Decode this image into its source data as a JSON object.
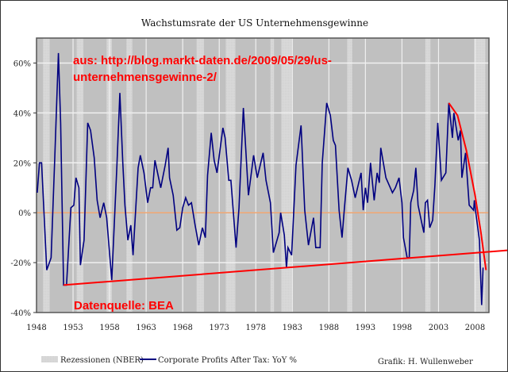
{
  "chart_data": {
    "type": "line",
    "title": "Wachstumsrate der US Unternehmensgewinne",
    "xlabel": "",
    "ylabel": "",
    "xlim": [
      1948,
      2009.9
    ],
    "ylim": [
      -40,
      70
    ],
    "x_ticks": [
      1948,
      1953,
      1958,
      1963,
      1968,
      1973,
      1978,
      1983,
      1988,
      1993,
      1998,
      2003,
      2008
    ],
    "x_tick_labels": [
      "1948",
      "1953",
      "1958",
      "1963",
      "1968",
      "1973",
      "1978",
      "1983",
      "1988",
      "1993",
      "1998",
      "2003",
      "2008"
    ],
    "y_ticks": [
      -40,
      -20,
      0,
      20,
      40,
      60
    ],
    "y_tick_labels": [
      "-40%",
      "-20%",
      "0%",
      "20%",
      "40%",
      "60%"
    ],
    "grid": true,
    "colors": {
      "background": "#c0c0c0",
      "recession": "#d6d6d6",
      "series": "#000080",
      "zero_line": "#f08030",
      "annotation": "#ff0000",
      "grid": "#f0f0f0"
    },
    "recessions": [
      [
        1948.9,
        1949.8
      ],
      [
        1953.5,
        1954.4
      ],
      [
        1957.6,
        1958.3
      ],
      [
        1960.3,
        1961.1
      ],
      [
        1969.9,
        1970.9
      ],
      [
        1973.9,
        1975.2
      ],
      [
        1980.0,
        1980.5
      ],
      [
        1981.5,
        1982.9
      ],
      [
        1990.5,
        1991.2
      ],
      [
        2001.2,
        2001.9
      ],
      [
        2007.9,
        2009.4
      ]
    ],
    "series": [
      {
        "name": "Corporate Profits After Tax: YoY %",
        "points": [
          [
            1948.1,
            8
          ],
          [
            1948.4,
            20
          ],
          [
            1948.7,
            20
          ],
          [
            1949.4,
            -23
          ],
          [
            1950.0,
            -18
          ],
          [
            1950.5,
            22
          ],
          [
            1951.0,
            64
          ],
          [
            1951.3,
            36
          ],
          [
            1951.7,
            -29
          ],
          [
            1952.1,
            -29
          ],
          [
            1952.7,
            2
          ],
          [
            1953.1,
            3
          ],
          [
            1953.4,
            14
          ],
          [
            1953.8,
            10
          ],
          [
            1954.0,
            -21
          ],
          [
            1954.5,
            -11
          ],
          [
            1955.0,
            36
          ],
          [
            1955.4,
            33
          ],
          [
            1955.9,
            22
          ],
          [
            1956.3,
            5
          ],
          [
            1956.7,
            -2
          ],
          [
            1957.2,
            4
          ],
          [
            1957.6,
            -2
          ],
          [
            1958.3,
            -27
          ],
          [
            1959.0,
            19
          ],
          [
            1959.4,
            48
          ],
          [
            1959.8,
            20
          ],
          [
            1960.1,
            3
          ],
          [
            1960.5,
            -11
          ],
          [
            1960.9,
            -5
          ],
          [
            1961.2,
            -17
          ],
          [
            1961.9,
            18
          ],
          [
            1962.2,
            23
          ],
          [
            1962.7,
            16
          ],
          [
            1963.2,
            4
          ],
          [
            1963.6,
            10
          ],
          [
            1963.9,
            10
          ],
          [
            1964.2,
            21
          ],
          [
            1964.7,
            14
          ],
          [
            1965.0,
            10
          ],
          [
            1965.6,
            19
          ],
          [
            1966.0,
            26
          ],
          [
            1966.2,
            14
          ],
          [
            1966.7,
            7
          ],
          [
            1967.2,
            -7
          ],
          [
            1967.6,
            -6
          ],
          [
            1968.0,
            2
          ],
          [
            1968.4,
            6
          ],
          [
            1968.8,
            3
          ],
          [
            1969.2,
            4
          ],
          [
            1969.7,
            -5
          ],
          [
            1970.2,
            -13
          ],
          [
            1970.7,
            -6
          ],
          [
            1971.1,
            -10
          ],
          [
            1971.4,
            15
          ],
          [
            1971.9,
            32
          ],
          [
            1972.3,
            21
          ],
          [
            1972.7,
            16
          ],
          [
            1973.5,
            34
          ],
          [
            1973.8,
            30
          ],
          [
            1974.3,
            13
          ],
          [
            1974.6,
            13
          ],
          [
            1975.3,
            -14
          ],
          [
            1975.7,
            2
          ],
          [
            1976.3,
            42
          ],
          [
            1976.4,
            37
          ],
          [
            1977.0,
            7
          ],
          [
            1977.7,
            23
          ],
          [
            1978.2,
            14
          ],
          [
            1978.6,
            19
          ],
          [
            1979.0,
            24
          ],
          [
            1979.4,
            13
          ],
          [
            1980.0,
            4
          ],
          [
            1980.4,
            -16
          ],
          [
            1981.2,
            -8
          ],
          [
            1981.4,
            0
          ],
          [
            1981.9,
            -9
          ],
          [
            1982.2,
            -22
          ],
          [
            1982.4,
            -14
          ],
          [
            1982.9,
            -17
          ],
          [
            1983.5,
            19
          ],
          [
            1984.2,
            35
          ],
          [
            1984.7,
            1
          ],
          [
            1985.2,
            -13
          ],
          [
            1985.9,
            -2
          ],
          [
            1986.2,
            -14
          ],
          [
            1986.8,
            -14
          ],
          [
            1987.1,
            20
          ],
          [
            1987.7,
            44
          ],
          [
            1988.2,
            39
          ],
          [
            1988.6,
            29
          ],
          [
            1988.9,
            27
          ],
          [
            1989.4,
            1
          ],
          [
            1989.8,
            -10
          ],
          [
            1990.1,
            1
          ],
          [
            1990.6,
            18
          ],
          [
            1991.1,
            13
          ],
          [
            1991.6,
            6
          ],
          [
            1992.4,
            16
          ],
          [
            1992.7,
            1
          ],
          [
            1993.0,
            10
          ],
          [
            1993.3,
            4
          ],
          [
            1993.7,
            20
          ],
          [
            1994.2,
            5
          ],
          [
            1994.6,
            16
          ],
          [
            1994.9,
            12
          ],
          [
            1995.1,
            26
          ],
          [
            1995.8,
            14
          ],
          [
            1996.4,
            10
          ],
          [
            1996.7,
            8
          ],
          [
            1997.1,
            10
          ],
          [
            1997.6,
            14
          ],
          [
            1998.0,
            4
          ],
          [
            1998.2,
            -10
          ],
          [
            1998.7,
            -18
          ],
          [
            1999.0,
            -18
          ],
          [
            1999.2,
            4
          ],
          [
            1999.6,
            9
          ],
          [
            1999.9,
            18
          ],
          [
            2000.2,
            3
          ],
          [
            2000.7,
            -4
          ],
          [
            2001.0,
            -8
          ],
          [
            2001.2,
            4
          ],
          [
            2001.5,
            5
          ],
          [
            2001.8,
            -6
          ],
          [
            2002.2,
            -3
          ],
          [
            2002.5,
            11
          ],
          [
            2002.9,
            36
          ],
          [
            2003.4,
            13
          ],
          [
            2004.0,
            16
          ],
          [
            2004.4,
            44
          ],
          [
            2004.9,
            30
          ],
          [
            2005.1,
            40
          ],
          [
            2005.7,
            29
          ],
          [
            2006.0,
            33
          ],
          [
            2006.2,
            14
          ],
          [
            2006.7,
            24
          ],
          [
            2007.2,
            3
          ],
          [
            2007.8,
            1
          ],
          [
            2007.9,
            5
          ],
          [
            2008.1,
            0
          ],
          [
            2008.6,
            -11
          ],
          [
            2008.9,
            -37
          ],
          [
            2009.1,
            -22
          ]
        ]
      }
    ],
    "annotation_lines": {
      "trend_line": [
        [
          1951.7,
          -29
        ],
        [
          2012.7,
          -15
        ]
      ],
      "decline_curve": [
        [
          2004.4,
          44
        ],
        [
          2005.6,
          39
        ],
        [
          2006.8,
          25
        ],
        [
          2008.0,
          7
        ],
        [
          2008.8,
          -8
        ],
        [
          2009.5,
          -23
        ]
      ]
    },
    "annotations": {
      "source_url_line1": "aus:  http://blog.markt-daten.de/2009/05/29/us-",
      "source_url_line2": "unternehmensgewinne-2/",
      "data_source": "Datenquelle: BEA"
    },
    "legend": {
      "placement": "bottom",
      "recession_label": "Rezessionen (NBER)",
      "series_label": "Corporate Profits After Tax: YoY %"
    },
    "credit": "Grafik: H. Wullenweber"
  }
}
